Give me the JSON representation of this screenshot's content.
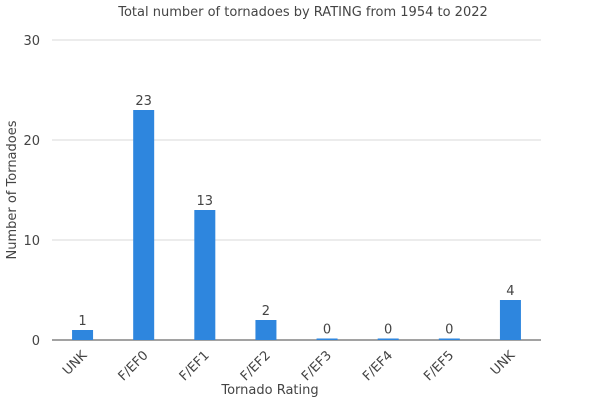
{
  "chart_data": {
    "type": "bar",
    "title": "Total number of tornadoes by RATING from 1954 to 2022",
    "xlabel": "Tornado Rating",
    "ylabel": "Number of Tornadoes",
    "categories": [
      "UNK",
      "F/EF0",
      "F/EF1",
      "F/EF2",
      "F/EF3",
      "F/EF4",
      "F/EF5",
      "UNK"
    ],
    "values": [
      1,
      23,
      13,
      2,
      0,
      0,
      0,
      4
    ],
    "ylim": [
      0,
      30
    ],
    "yticks": [
      0,
      10,
      20,
      30
    ],
    "grid": true,
    "legend": "none",
    "bar_color": "#2e86de"
  }
}
